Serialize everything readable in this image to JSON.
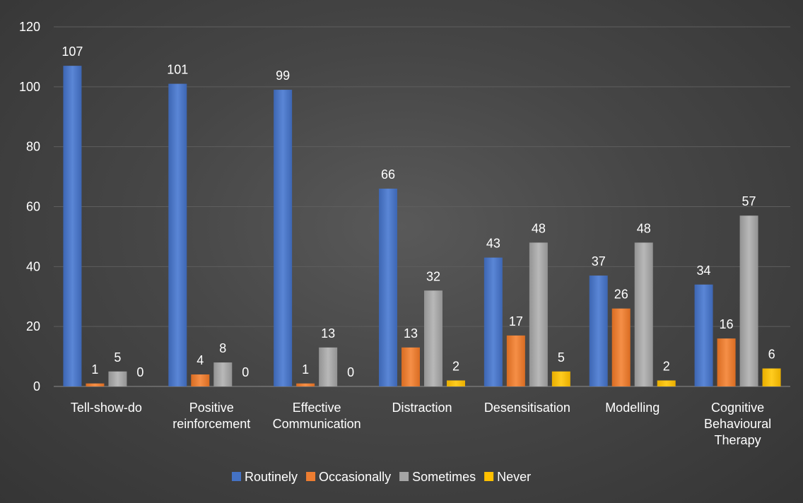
{
  "chart_data": {
    "type": "bar",
    "title": "",
    "xlabel": "",
    "ylabel": "",
    "ylim": [
      0,
      120
    ],
    "yticks": [
      0,
      20,
      40,
      60,
      80,
      100,
      120
    ],
    "grid": true,
    "legend_position": "bottom",
    "categories": [
      [
        "Tell-show-do"
      ],
      [
        "Positive",
        "reinforcement"
      ],
      [
        "Effective",
        "Communication"
      ],
      [
        "Distraction"
      ],
      [
        "Desensitisation"
      ],
      [
        "Modelling"
      ],
      [
        "Cognitive",
        "Behavioural",
        "Therapy"
      ]
    ],
    "series": [
      {
        "name": "Routinely",
        "color": "#4472C4",
        "values": [
          107,
          101,
          99,
          66,
          43,
          37,
          34
        ]
      },
      {
        "name": "Occasionally",
        "color": "#ED7D31",
        "values": [
          1,
          4,
          1,
          13,
          17,
          26,
          16
        ]
      },
      {
        "name": "Sometimes",
        "color": "#A5A5A5",
        "values": [
          5,
          8,
          13,
          32,
          48,
          48,
          57
        ]
      },
      {
        "name": "Never",
        "color": "#FFC000",
        "values": [
          0,
          0,
          0,
          2,
          5,
          2,
          6
        ]
      }
    ]
  }
}
